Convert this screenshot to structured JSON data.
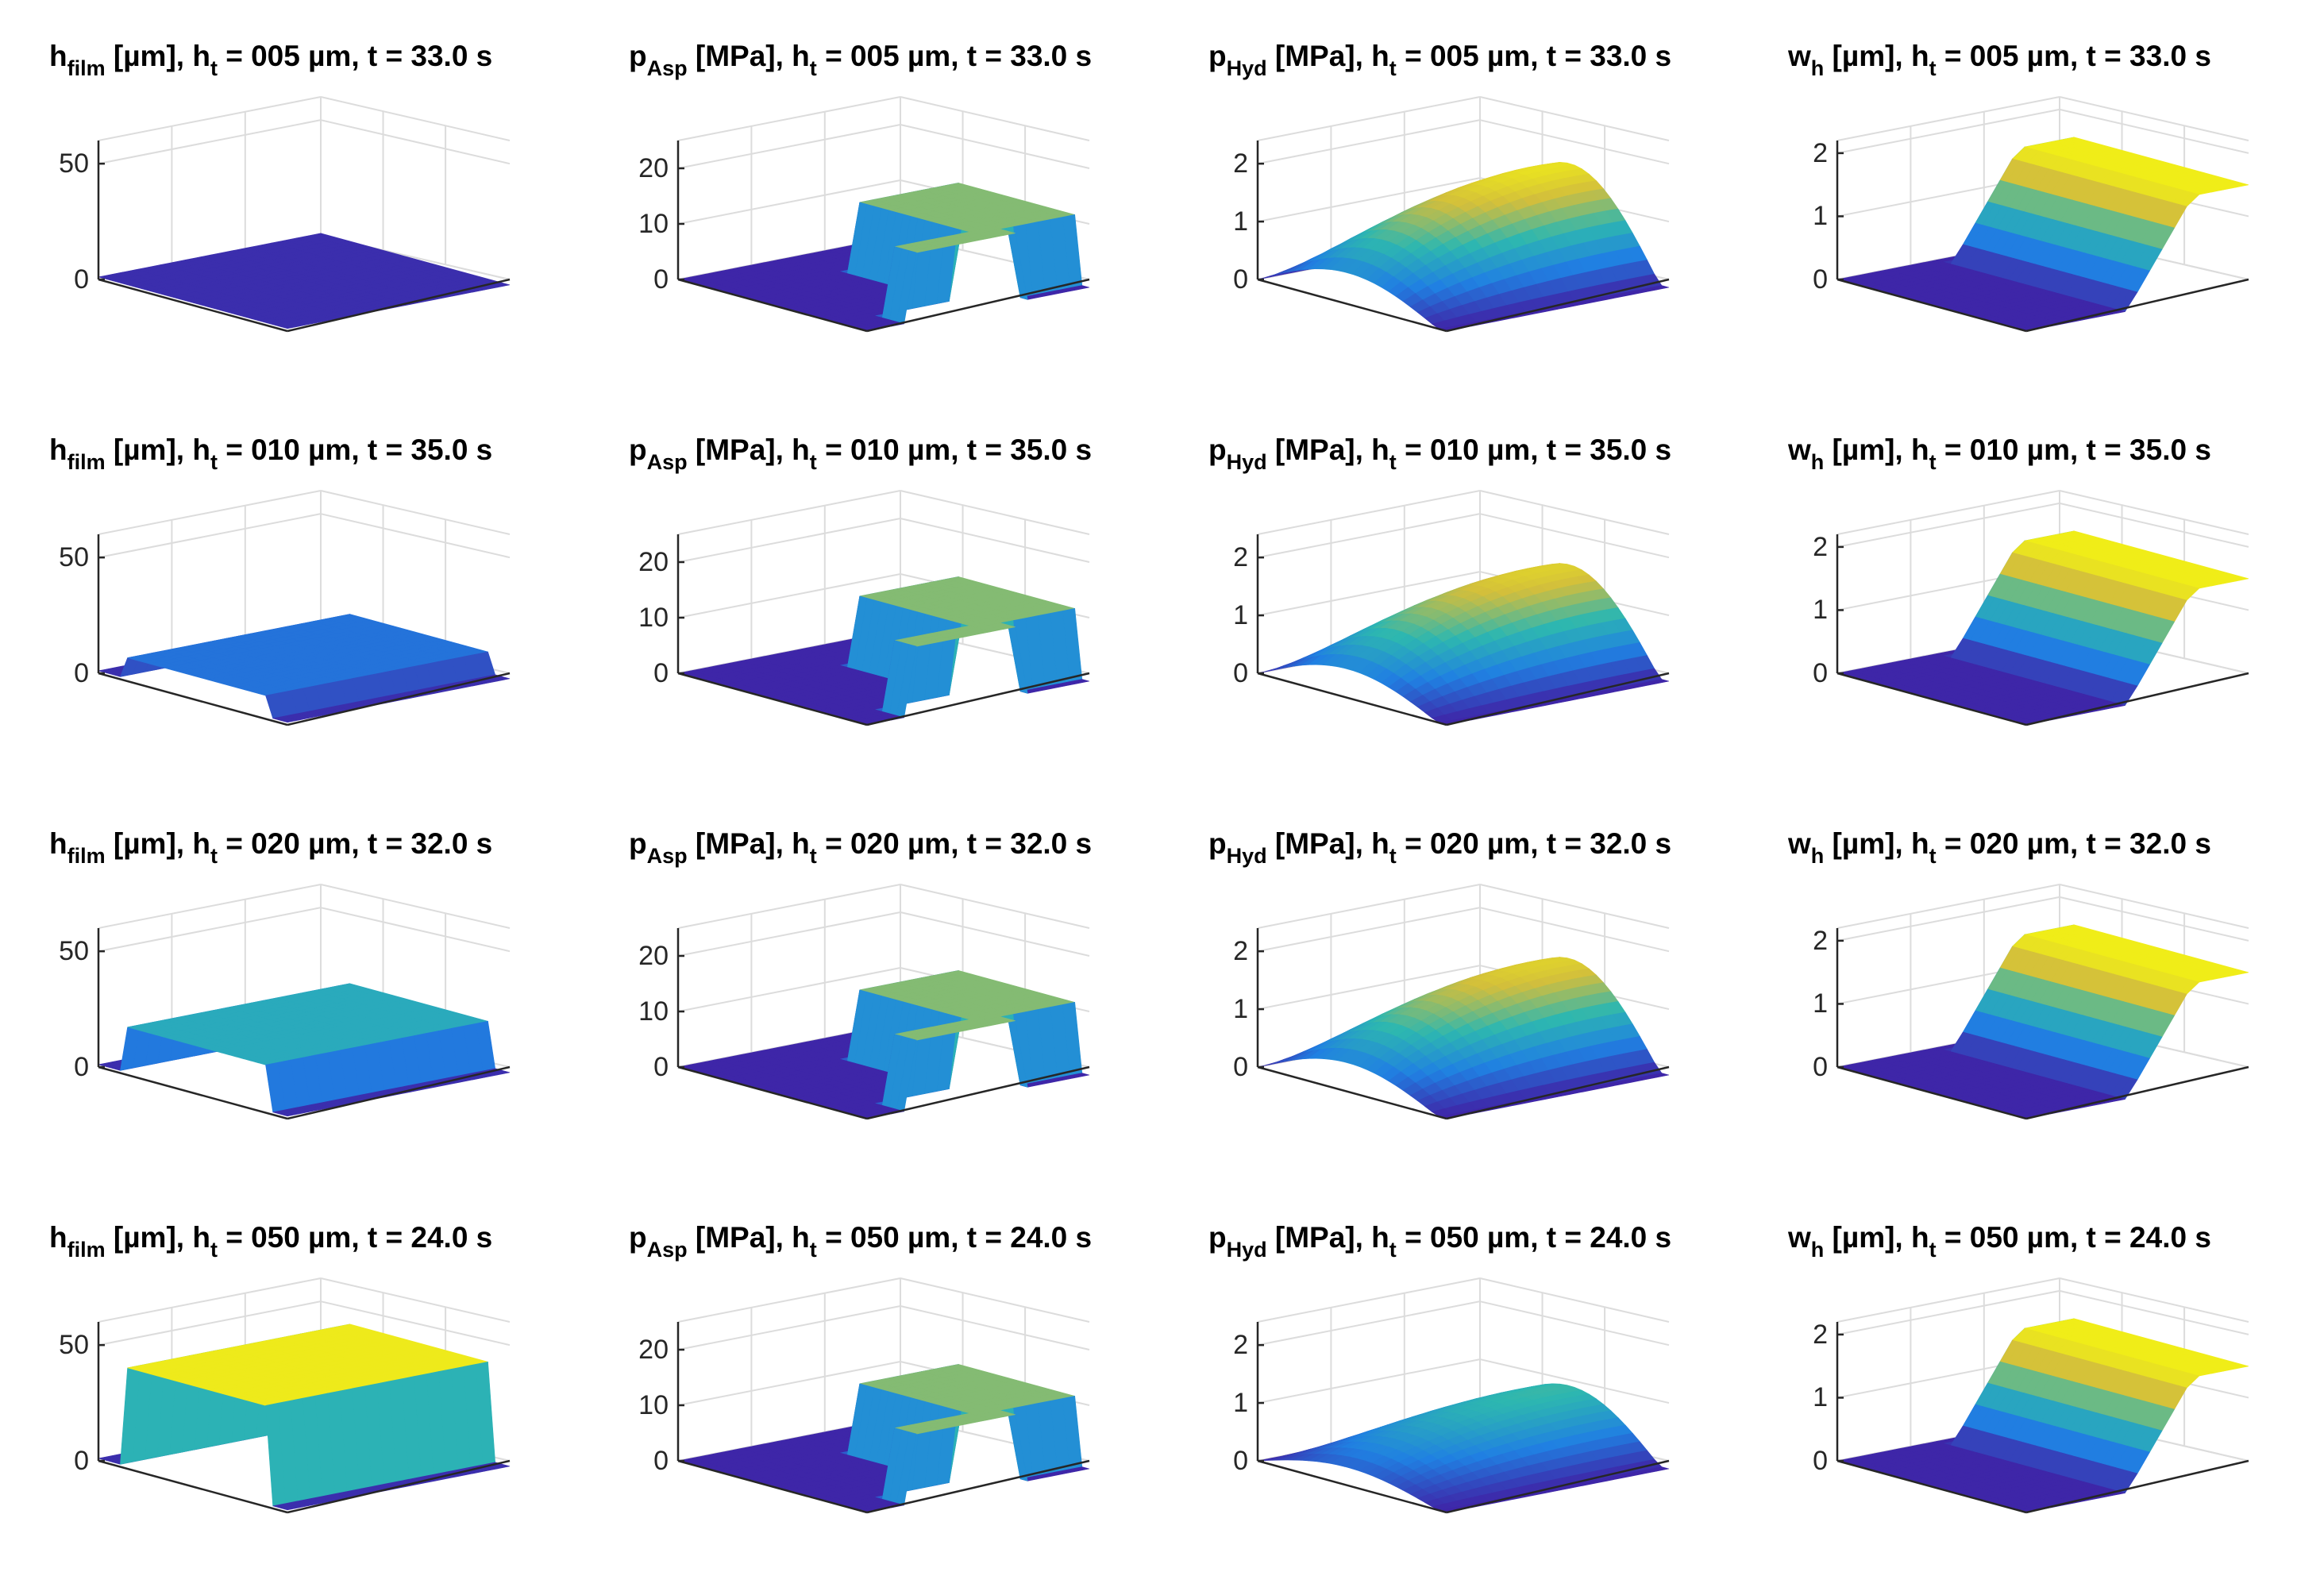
{
  "chart_data": [
    {
      "type": "surface3d",
      "quantity": "h_film",
      "title": {
        "main": "h",
        "sub": "film",
        "rest1": " [µm], h",
        "sub2": "t",
        "rest2": " = 005 µm, t = 33.0 s"
      },
      "zticks": [
        {
          "v": 0,
          "label": "0"
        },
        {
          "v": 50,
          "label": "50"
        }
      ],
      "zlim": [
        0,
        60
      ],
      "case": "ht005"
    },
    {
      "type": "surface3d",
      "quantity": "p_Asp",
      "title": {
        "main": "p",
        "sub": "Asp",
        "rest1": " [MPa], h",
        "sub2": "t",
        "rest2": " = 005 µm, t = 33.0 s"
      },
      "zticks": [
        {
          "v": 0,
          "label": "0"
        },
        {
          "v": 10,
          "label": "10"
        },
        {
          "v": 20,
          "label": "20"
        }
      ],
      "zlim": [
        0,
        25
      ],
      "case": "ht005"
    },
    {
      "type": "surface3d",
      "quantity": "p_Hyd",
      "title": {
        "main": "p",
        "sub": "Hyd",
        "rest1": " [MPa], h",
        "sub2": "t",
        "rest2": " = 005 µm, t = 33.0 s"
      },
      "zticks": [
        {
          "v": 0,
          "label": "0"
        },
        {
          "v": 1,
          "label": "1"
        },
        {
          "v": 2,
          "label": "2"
        }
      ],
      "zlim": [
        0,
        2.4
      ],
      "case": "ht005"
    },
    {
      "type": "surface3d",
      "quantity": "w_h",
      "title": {
        "main": "w",
        "sub": "h",
        "rest1": " [µm], h",
        "sub2": "t",
        "rest2": " = 005 µm, t = 33.0 s"
      },
      "zticks": [
        {
          "v": 0,
          "label": "0"
        },
        {
          "v": 1,
          "label": "1"
        },
        {
          "v": 2,
          "label": "2"
        }
      ],
      "zlim": [
        0,
        2.2
      ],
      "case": "ht005"
    },
    {
      "type": "surface3d",
      "quantity": "h_film",
      "title": {
        "main": "h",
        "sub": "film",
        "rest1": " [µm], h",
        "sub2": "t",
        "rest2": " = 010 µm, t = 35.0 s"
      },
      "zticks": [
        {
          "v": 0,
          "label": "0"
        },
        {
          "v": 50,
          "label": "50"
        }
      ],
      "zlim": [
        0,
        60
      ],
      "case": "ht010"
    },
    {
      "type": "surface3d",
      "quantity": "p_Asp",
      "title": {
        "main": "p",
        "sub": "Asp",
        "rest1": " [MPa], h",
        "sub2": "t",
        "rest2": " = 010 µm, t = 35.0 s"
      },
      "zticks": [
        {
          "v": 0,
          "label": "0"
        },
        {
          "v": 10,
          "label": "10"
        },
        {
          "v": 20,
          "label": "20"
        }
      ],
      "zlim": [
        0,
        25
      ],
      "case": "ht010"
    },
    {
      "type": "surface3d",
      "quantity": "p_Hyd",
      "title": {
        "main": "p",
        "sub": "Hyd",
        "rest1": " [MPa], h",
        "sub2": "t",
        "rest2": " = 010 µm, t = 35.0 s"
      },
      "zticks": [
        {
          "v": 0,
          "label": "0"
        },
        {
          "v": 1,
          "label": "1"
        },
        {
          "v": 2,
          "label": "2"
        }
      ],
      "zlim": [
        0,
        2.4
      ],
      "case": "ht010"
    },
    {
      "type": "surface3d",
      "quantity": "w_h",
      "title": {
        "main": "w",
        "sub": "h",
        "rest1": " [µm], h",
        "sub2": "t",
        "rest2": " = 010 µm, t = 35.0 s"
      },
      "zticks": [
        {
          "v": 0,
          "label": "0"
        },
        {
          "v": 1,
          "label": "1"
        },
        {
          "v": 2,
          "label": "2"
        }
      ],
      "zlim": [
        0,
        2.2
      ],
      "case": "ht010"
    },
    {
      "type": "surface3d",
      "quantity": "h_film",
      "title": {
        "main": "h",
        "sub": "film",
        "rest1": " [µm], h",
        "sub2": "t",
        "rest2": " = 020 µm, t = 32.0 s"
      },
      "zticks": [
        {
          "v": 0,
          "label": "0"
        },
        {
          "v": 50,
          "label": "50"
        }
      ],
      "zlim": [
        0,
        60
      ],
      "case": "ht020"
    },
    {
      "type": "surface3d",
      "quantity": "p_Asp",
      "title": {
        "main": "p",
        "sub": "Asp",
        "rest1": " [MPa], h",
        "sub2": "t",
        "rest2": " = 020 µm, t = 32.0 s"
      },
      "zticks": [
        {
          "v": 0,
          "label": "0"
        },
        {
          "v": 10,
          "label": "10"
        },
        {
          "v": 20,
          "label": "20"
        }
      ],
      "zlim": [
        0,
        25
      ],
      "case": "ht020"
    },
    {
      "type": "surface3d",
      "quantity": "p_Hyd",
      "title": {
        "main": "p",
        "sub": "Hyd",
        "rest1": " [MPa], h",
        "sub2": "t",
        "rest2": " = 020 µm, t = 32.0 s"
      },
      "zticks": [
        {
          "v": 0,
          "label": "0"
        },
        {
          "v": 1,
          "label": "1"
        },
        {
          "v": 2,
          "label": "2"
        }
      ],
      "zlim": [
        0,
        2.4
      ],
      "case": "ht020"
    },
    {
      "type": "surface3d",
      "quantity": "w_h",
      "title": {
        "main": "w",
        "sub": "h",
        "rest1": " [µm], h",
        "sub2": "t",
        "rest2": " = 020 µm, t = 32.0 s"
      },
      "zticks": [
        {
          "v": 0,
          "label": "0"
        },
        {
          "v": 1,
          "label": "1"
        },
        {
          "v": 2,
          "label": "2"
        }
      ],
      "zlim": [
        0,
        2.2
      ],
      "case": "ht020"
    },
    {
      "type": "surface3d",
      "quantity": "h_film",
      "title": {
        "main": "h",
        "sub": "film",
        "rest1": " [µm], h",
        "sub2": "t",
        "rest2": " = 050 µm, t = 24.0 s"
      },
      "zticks": [
        {
          "v": 0,
          "label": "0"
        },
        {
          "v": 50,
          "label": "50"
        }
      ],
      "zlim": [
        0,
        60
      ],
      "case": "ht050"
    },
    {
      "type": "surface3d",
      "quantity": "p_Asp",
      "title": {
        "main": "p",
        "sub": "Asp",
        "rest1": " [MPa], h",
        "sub2": "t",
        "rest2": " = 050 µm, t = 24.0 s"
      },
      "zticks": [
        {
          "v": 0,
          "label": "0"
        },
        {
          "v": 10,
          "label": "10"
        },
        {
          "v": 20,
          "label": "20"
        }
      ],
      "zlim": [
        0,
        25
      ],
      "case": "ht050"
    },
    {
      "type": "surface3d",
      "quantity": "p_Hyd",
      "title": {
        "main": "p",
        "sub": "Hyd",
        "rest1": " [MPa], h",
        "sub2": "t",
        "rest2": " = 050 µm, t = 24.0 s"
      },
      "zticks": [
        {
          "v": 0,
          "label": "0"
        },
        {
          "v": 1,
          "label": "1"
        },
        {
          "v": 2,
          "label": "2"
        }
      ],
      "zlim": [
        0,
        2.4
      ],
      "case": "ht050"
    },
    {
      "type": "surface3d",
      "quantity": "w_h",
      "title": {
        "main": "w",
        "sub": "h",
        "rest1": " [µm], h",
        "sub2": "t",
        "rest2": " = 050 µm, t = 24.0 s"
      },
      "zticks": [
        {
          "v": 0,
          "label": "0"
        },
        {
          "v": 1,
          "label": "1"
        },
        {
          "v": 2,
          "label": "2"
        }
      ],
      "zlim": [
        0,
        2.2
      ],
      "case": "ht050"
    }
  ],
  "colors": {
    "parula_low": "#3e26a8",
    "parula_mid": "#2db7b0",
    "parula_high": "#f9fb0e",
    "axis": "#262626",
    "grid": "#dcdcdc"
  }
}
